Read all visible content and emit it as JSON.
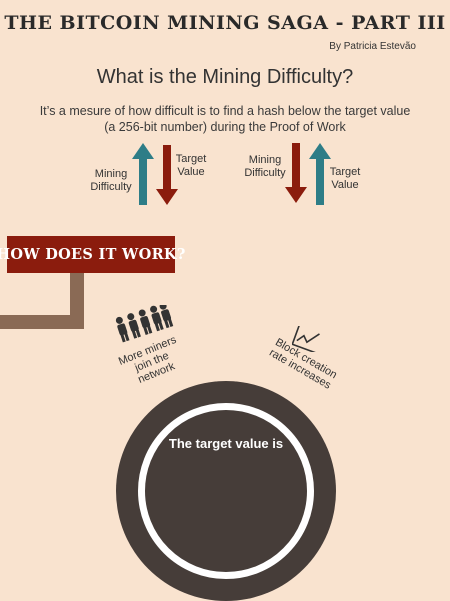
{
  "header": {
    "title": "THE BITCOIN MINING SAGA  - PART III",
    "author": "By Patricia Estevão"
  },
  "intro": {
    "question": "What is the Mining Difficulty?",
    "definition_line1": "It’s a mesure of how difficult is to find a hash below the target value",
    "definition_line2": "(a 256-bit number) during the Proof of Work"
  },
  "relation_left": {
    "label_a_line1": "Mining",
    "label_a_line2": "Difficulty",
    "label_b_line1": "Target",
    "label_b_line2": "Value"
  },
  "relation_right": {
    "label_a_line1": "Mining",
    "label_a_line2": "Difficulty",
    "label_b_line1": "Target",
    "label_b_line2": "Value"
  },
  "how": {
    "banner": "HOW DOES IT WORK?",
    "miners_line1": "More miners",
    "miners_line2": "join the",
    "miners_line3": "network",
    "block_line1": "Block creation",
    "block_line2": "rate increases",
    "circle_text": "The target value is"
  },
  "colors": {
    "background": "#f9e3cf",
    "teal": "#2e7d87",
    "red": "#8b1c0d",
    "brown": "#8a6a55",
    "dark": "#463d39"
  },
  "icons": [
    "arrow-up-icon",
    "arrow-down-icon",
    "miners-icon",
    "chart-icon"
  ]
}
